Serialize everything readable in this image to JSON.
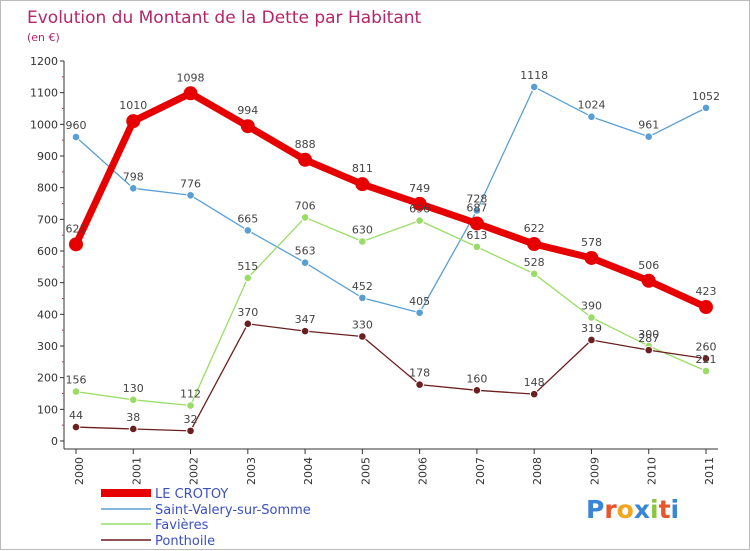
{
  "chart_data": {
    "type": "line",
    "title": "Evolution du Montant de la Dette par Habitant",
    "subtitle": "(en €)",
    "x": [
      "2000",
      "2001",
      "2002",
      "2003",
      "2004",
      "2005",
      "2006",
      "2007",
      "2008",
      "2009",
      "2010",
      "2011"
    ],
    "ylim": [
      0,
      1200
    ],
    "yticks": [
      0,
      100,
      200,
      300,
      400,
      500,
      600,
      700,
      800,
      900,
      1000,
      1100,
      1200
    ],
    "grid": false,
    "legend_position": "bottom-left",
    "series": [
      {
        "name": "LE CROTOY",
        "color": "#e60000",
        "values": [
          621,
          1010,
          1098,
          994,
          888,
          811,
          749,
          687,
          622,
          578,
          506,
          423
        ],
        "labels": [
          "621",
          "1010",
          "1098",
          "994",
          "888",
          "811",
          "749",
          "687",
          "622",
          "578",
          "506",
          "423"
        ]
      },
      {
        "name": "Saint-Valery-sur-Somme",
        "color": "#5a9fd4",
        "values": [
          960,
          798,
          776,
          665,
          563,
          452,
          405,
          728,
          1118,
          1024,
          961,
          1052
        ],
        "labels": [
          "960",
          "798",
          "776",
          "665",
          "563",
          "452",
          "405",
          "728",
          "1118",
          "1024",
          "961",
          "1052"
        ]
      },
      {
        "name": "Favières",
        "color": "#99dd66",
        "values": [
          156,
          130,
          112,
          515,
          706,
          630,
          696,
          613,
          528,
          390,
          300,
          221
        ],
        "labels": [
          "156",
          "130",
          "112",
          "515",
          "706",
          "630",
          "696",
          "613",
          "528",
          "390",
          "300",
          "221"
        ]
      },
      {
        "name": "Ponthoile",
        "color": "#6b1f1f",
        "values": [
          44,
          38,
          32,
          370,
          347,
          330,
          178,
          160,
          148,
          319,
          287,
          260
        ],
        "labels": [
          "44",
          "38",
          "32",
          "370",
          "347",
          "330",
          "178",
          "160",
          "148",
          "319",
          "287",
          "260"
        ]
      }
    ]
  },
  "logo": {
    "text": "Proxiti",
    "letter_colors": [
      "#3a86d6",
      "#e8562a",
      "#f2a51f",
      "#3a86d6",
      "#8cc63f",
      "#e8562a",
      "#3a86d6"
    ]
  }
}
